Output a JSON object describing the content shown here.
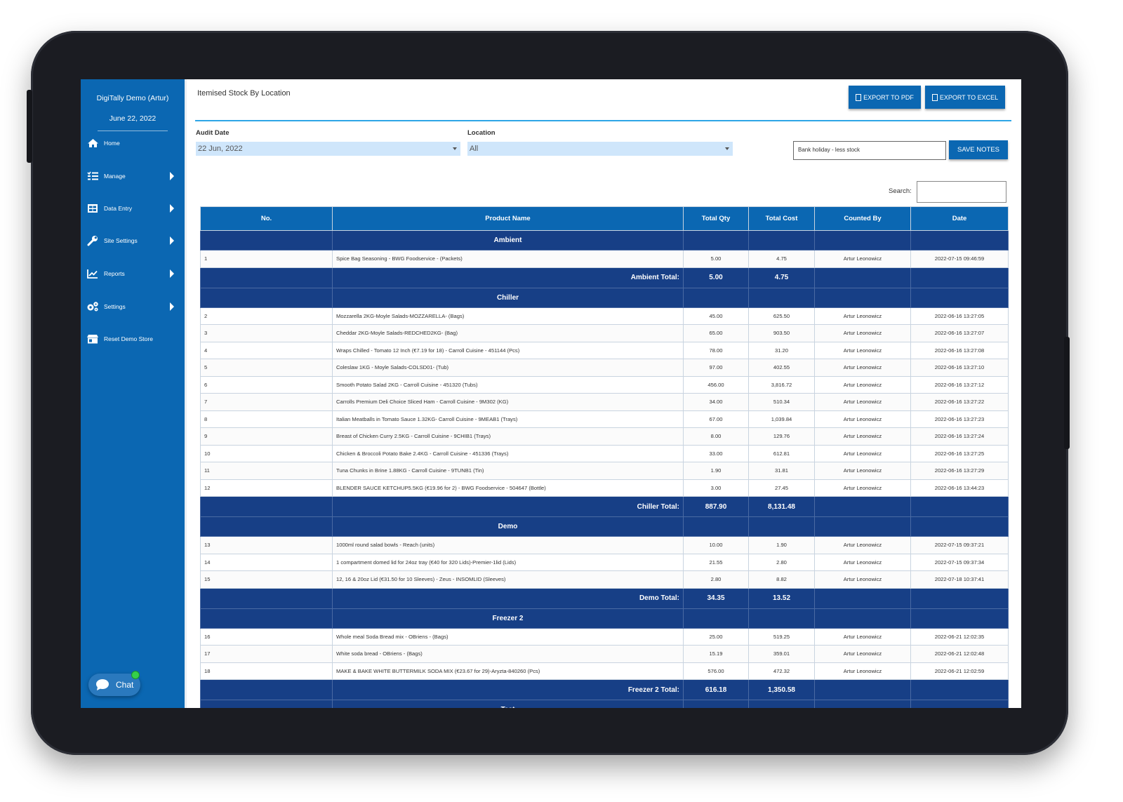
{
  "sidebar": {
    "company": "DigiTally Demo (Artur)",
    "date": "June 22, 2022",
    "items": [
      {
        "label": "Home",
        "icon": "home-icon",
        "has_submenu": false
      },
      {
        "label": "Manage",
        "icon": "list-icon",
        "has_submenu": true
      },
      {
        "label": "Data Entry",
        "icon": "table-icon",
        "has_submenu": true
      },
      {
        "label": "Site Settings",
        "icon": "wrench-icon",
        "has_submenu": true
      },
      {
        "label": "Reports",
        "icon": "chart-icon",
        "has_submenu": true
      },
      {
        "label": "Settings",
        "icon": "cogs-icon",
        "has_submenu": true
      },
      {
        "label": "Reset Demo Store",
        "icon": "store-icon",
        "has_submenu": false
      }
    ],
    "chat_label": "Chat"
  },
  "header": {
    "title": "Itemised Stock By Location",
    "export_pdf": "EXPORT TO PDF",
    "export_excel": "EXPORT TO EXCEL"
  },
  "filters": {
    "audit_date_label": "Audit Date",
    "audit_date_value": "22 Jun, 2022",
    "location_label": "Location",
    "location_value": "All",
    "notes_value": "Bank holiday - less stock",
    "save_notes": "SAVE NOTES",
    "search_label": "Search:"
  },
  "table": {
    "columns": [
      "No.",
      "Product Name",
      "Total Qty",
      "Total Cost",
      "Counted By",
      "Date"
    ],
    "groups": [
      {
        "name": "Ambient",
        "rows": [
          {
            "no": "1",
            "product": "Spice Bag Seasoning - BWG Foodservice - (Packets)",
            "qty": "5.00",
            "cost": "4.75",
            "by": "Artur Leonowicz",
            "date": "2022-07-15 09:46:59"
          }
        ],
        "total_label": "Ambient Total:",
        "total_qty": "5.00",
        "total_cost": "4.75"
      },
      {
        "name": "Chiller",
        "rows": [
          {
            "no": "2",
            "product": "Mozzarella 2KG-Moyle Salads-MOZZARELLA- (Bags)",
            "qty": "45.00",
            "cost": "625.50",
            "by": "Artur Leonowicz",
            "date": "2022-06-16 13:27:05"
          },
          {
            "no": "3",
            "product": "Cheddar 2KG-Moyle Salads-REDCHED2KG- (Bag)",
            "qty": "65.00",
            "cost": "903.50",
            "by": "Artur Leonowicz",
            "date": "2022-06-16 13:27:07"
          },
          {
            "no": "4",
            "product": "Wraps Chilled - Tomato 12 Inch (€7.19 for 18) - Carroll Cuisine - 451144 (Pcs)",
            "qty": "78.00",
            "cost": "31.20",
            "by": "Artur Leonowicz",
            "date": "2022-06-16 13:27:08"
          },
          {
            "no": "5",
            "product": "Coleslaw 1KG - Moyle Salads-COLSD01- (Tub)",
            "qty": "97.00",
            "cost": "402.55",
            "by": "Artur Leonowicz",
            "date": "2022-06-16 13:27:10"
          },
          {
            "no": "6",
            "product": "Smooth Potato Salad 2KG - Carroll Cuisine - 451320 (Tubs)",
            "qty": "456.00",
            "cost": "3,816.72",
            "by": "Artur Leonowicz",
            "date": "2022-06-16 13:27:12"
          },
          {
            "no": "7",
            "product": "Carrolls Premium Deli Choice Sliced Ham - Carroll Cuisine - 9M302 (KG)",
            "qty": "34.00",
            "cost": "510.34",
            "by": "Artur Leonowicz",
            "date": "2022-06-16 13:27:22"
          },
          {
            "no": "8",
            "product": "Italian Meatballs in Tomato Sauce 1.32KG- Carroll Cuisine - 9MEAB1 (Trays)",
            "qty": "67.00",
            "cost": "1,039.84",
            "by": "Artur Leonowicz",
            "date": "2022-06-16 13:27:23"
          },
          {
            "no": "9",
            "product": "Breast of Chicken Curry 2.5KG - Carroll Cuisine - 9CHIB1 (Trays)",
            "qty": "8.00",
            "cost": "129.76",
            "by": "Artur Leonowicz",
            "date": "2022-06-16 13:27:24"
          },
          {
            "no": "10",
            "product": "Chicken & Broccoli Potato Bake 2.4KG - Carroll Cuisine - 451336 (Trays)",
            "qty": "33.00",
            "cost": "612.81",
            "by": "Artur Leonowicz",
            "date": "2022-06-16 13:27:25"
          },
          {
            "no": "11",
            "product": "Tuna Chunks in Brine 1.88KG - Carroll Cuisine - 9TUNB1 (Tin)",
            "qty": "1.90",
            "cost": "31.81",
            "by": "Artur Leonowicz",
            "date": "2022-06-16 13:27:29"
          },
          {
            "no": "12",
            "product": "BLENDER SAUCE KETCHUP5.5KG (€19.96 for 2) - BWG Foodservice - 504647 (Bottle)",
            "qty": "3.00",
            "cost": "27.45",
            "by": "Artur Leonowicz",
            "date": "2022-06-16 13:44:23"
          }
        ],
        "total_label": "Chiller Total:",
        "total_qty": "887.90",
        "total_cost": "8,131.48"
      },
      {
        "name": "Demo",
        "rows": [
          {
            "no": "13",
            "product": "1000ml round salad bowls - Reach (units)",
            "qty": "10.00",
            "cost": "1.90",
            "by": "Artur Leonowicz",
            "date": "2022-07-15 09:37:21"
          },
          {
            "no": "14",
            "product": "1 compartment domed lid for 24oz tray (€40 for 320 Lids)-Premier-1lid (Lids)",
            "qty": "21.55",
            "cost": "2.80",
            "by": "Artur Leonowicz",
            "date": "2022-07-15 09:37:34"
          },
          {
            "no": "15",
            "product": "12, 16 & 20oz Lid (€31.50 for 10 Sleeves) - Zeus - INSOMLID (Sleeves)",
            "qty": "2.80",
            "cost": "8.82",
            "by": "Artur Leonowicz",
            "date": "2022-07-18 10:37:41"
          }
        ],
        "total_label": "Demo Total:",
        "total_qty": "34.35",
        "total_cost": "13.52"
      },
      {
        "name": "Freezer 2",
        "rows": [
          {
            "no": "16",
            "product": "Whole meal Soda Bread mix - OBriens - (Bags)",
            "qty": "25.00",
            "cost": "519.25",
            "by": "Artur Leonowicz",
            "date": "2022-06-21 12:02:35"
          },
          {
            "no": "17",
            "product": "White soda bread - OBriens - (Bags)",
            "qty": "15.19",
            "cost": "359.01",
            "by": "Artur Leonowicz",
            "date": "2022-06-21 12:02:48"
          },
          {
            "no": "18",
            "product": "MAKE & BAKE WHITE BUTTERMILK SODA MIX (€23.67 for 29)-Aryzta-840260 (Pcs)",
            "qty": "576.00",
            "cost": "472.32",
            "by": "Artur Leonowicz",
            "date": "2022-06-21 12:02:59"
          }
        ],
        "total_label": "Freezer 2 Total:",
        "total_qty": "616.18",
        "total_cost": "1,350.58"
      }
    ],
    "partial_group": "Test"
  }
}
